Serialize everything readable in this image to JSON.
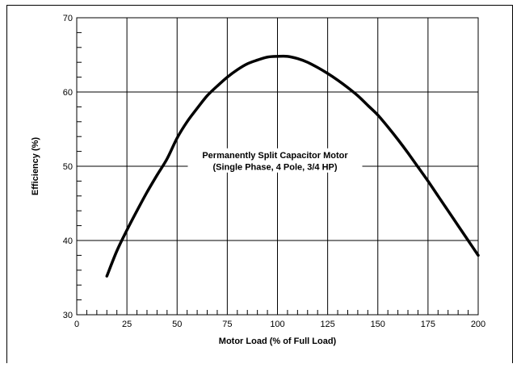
{
  "chart_data": {
    "type": "line",
    "title": "",
    "xlabel": "Motor Load (% of Full Load)",
    "ylabel": "Efficiency (%)",
    "xlim": [
      0,
      200
    ],
    "ylim": [
      30,
      70
    ],
    "x_ticks": [
      0,
      25,
      50,
      75,
      100,
      125,
      150,
      175,
      200
    ],
    "y_ticks": [
      30,
      40,
      50,
      60,
      70
    ],
    "x_tick_labels": [
      "0",
      "25",
      "50",
      "75",
      "100",
      "125",
      "150",
      "175",
      "200"
    ],
    "y_tick_labels": [
      "30",
      "40",
      "50",
      "60",
      "70"
    ],
    "grid": true,
    "annotation": [
      "Permanently Split Capacitor Motor",
      "(Single Phase, 4 Pole, 3/4 HP)"
    ],
    "series": [
      {
        "x": [
          15,
          20,
          25,
          30,
          35,
          40,
          45,
          50,
          55,
          60,
          65,
          70,
          75,
          80,
          85,
          90,
          95,
          100,
          105,
          110,
          115,
          120,
          125,
          130,
          135,
          140,
          145,
          150,
          155,
          160,
          165,
          170,
          175,
          180,
          185,
          190,
          195,
          200
        ],
        "values": [
          35.2,
          38.6,
          41.4,
          44.0,
          46.5,
          48.8,
          51.0,
          53.8,
          56.0,
          57.8,
          59.5,
          60.8,
          62.0,
          63.0,
          63.8,
          64.3,
          64.7,
          64.8,
          64.8,
          64.5,
          64.0,
          63.3,
          62.5,
          61.6,
          60.6,
          59.5,
          58.2,
          56.9,
          55.3,
          53.6,
          51.8,
          49.9,
          48.0,
          46.0,
          44.0,
          42.0,
          40.0,
          38.0
        ]
      }
    ]
  }
}
